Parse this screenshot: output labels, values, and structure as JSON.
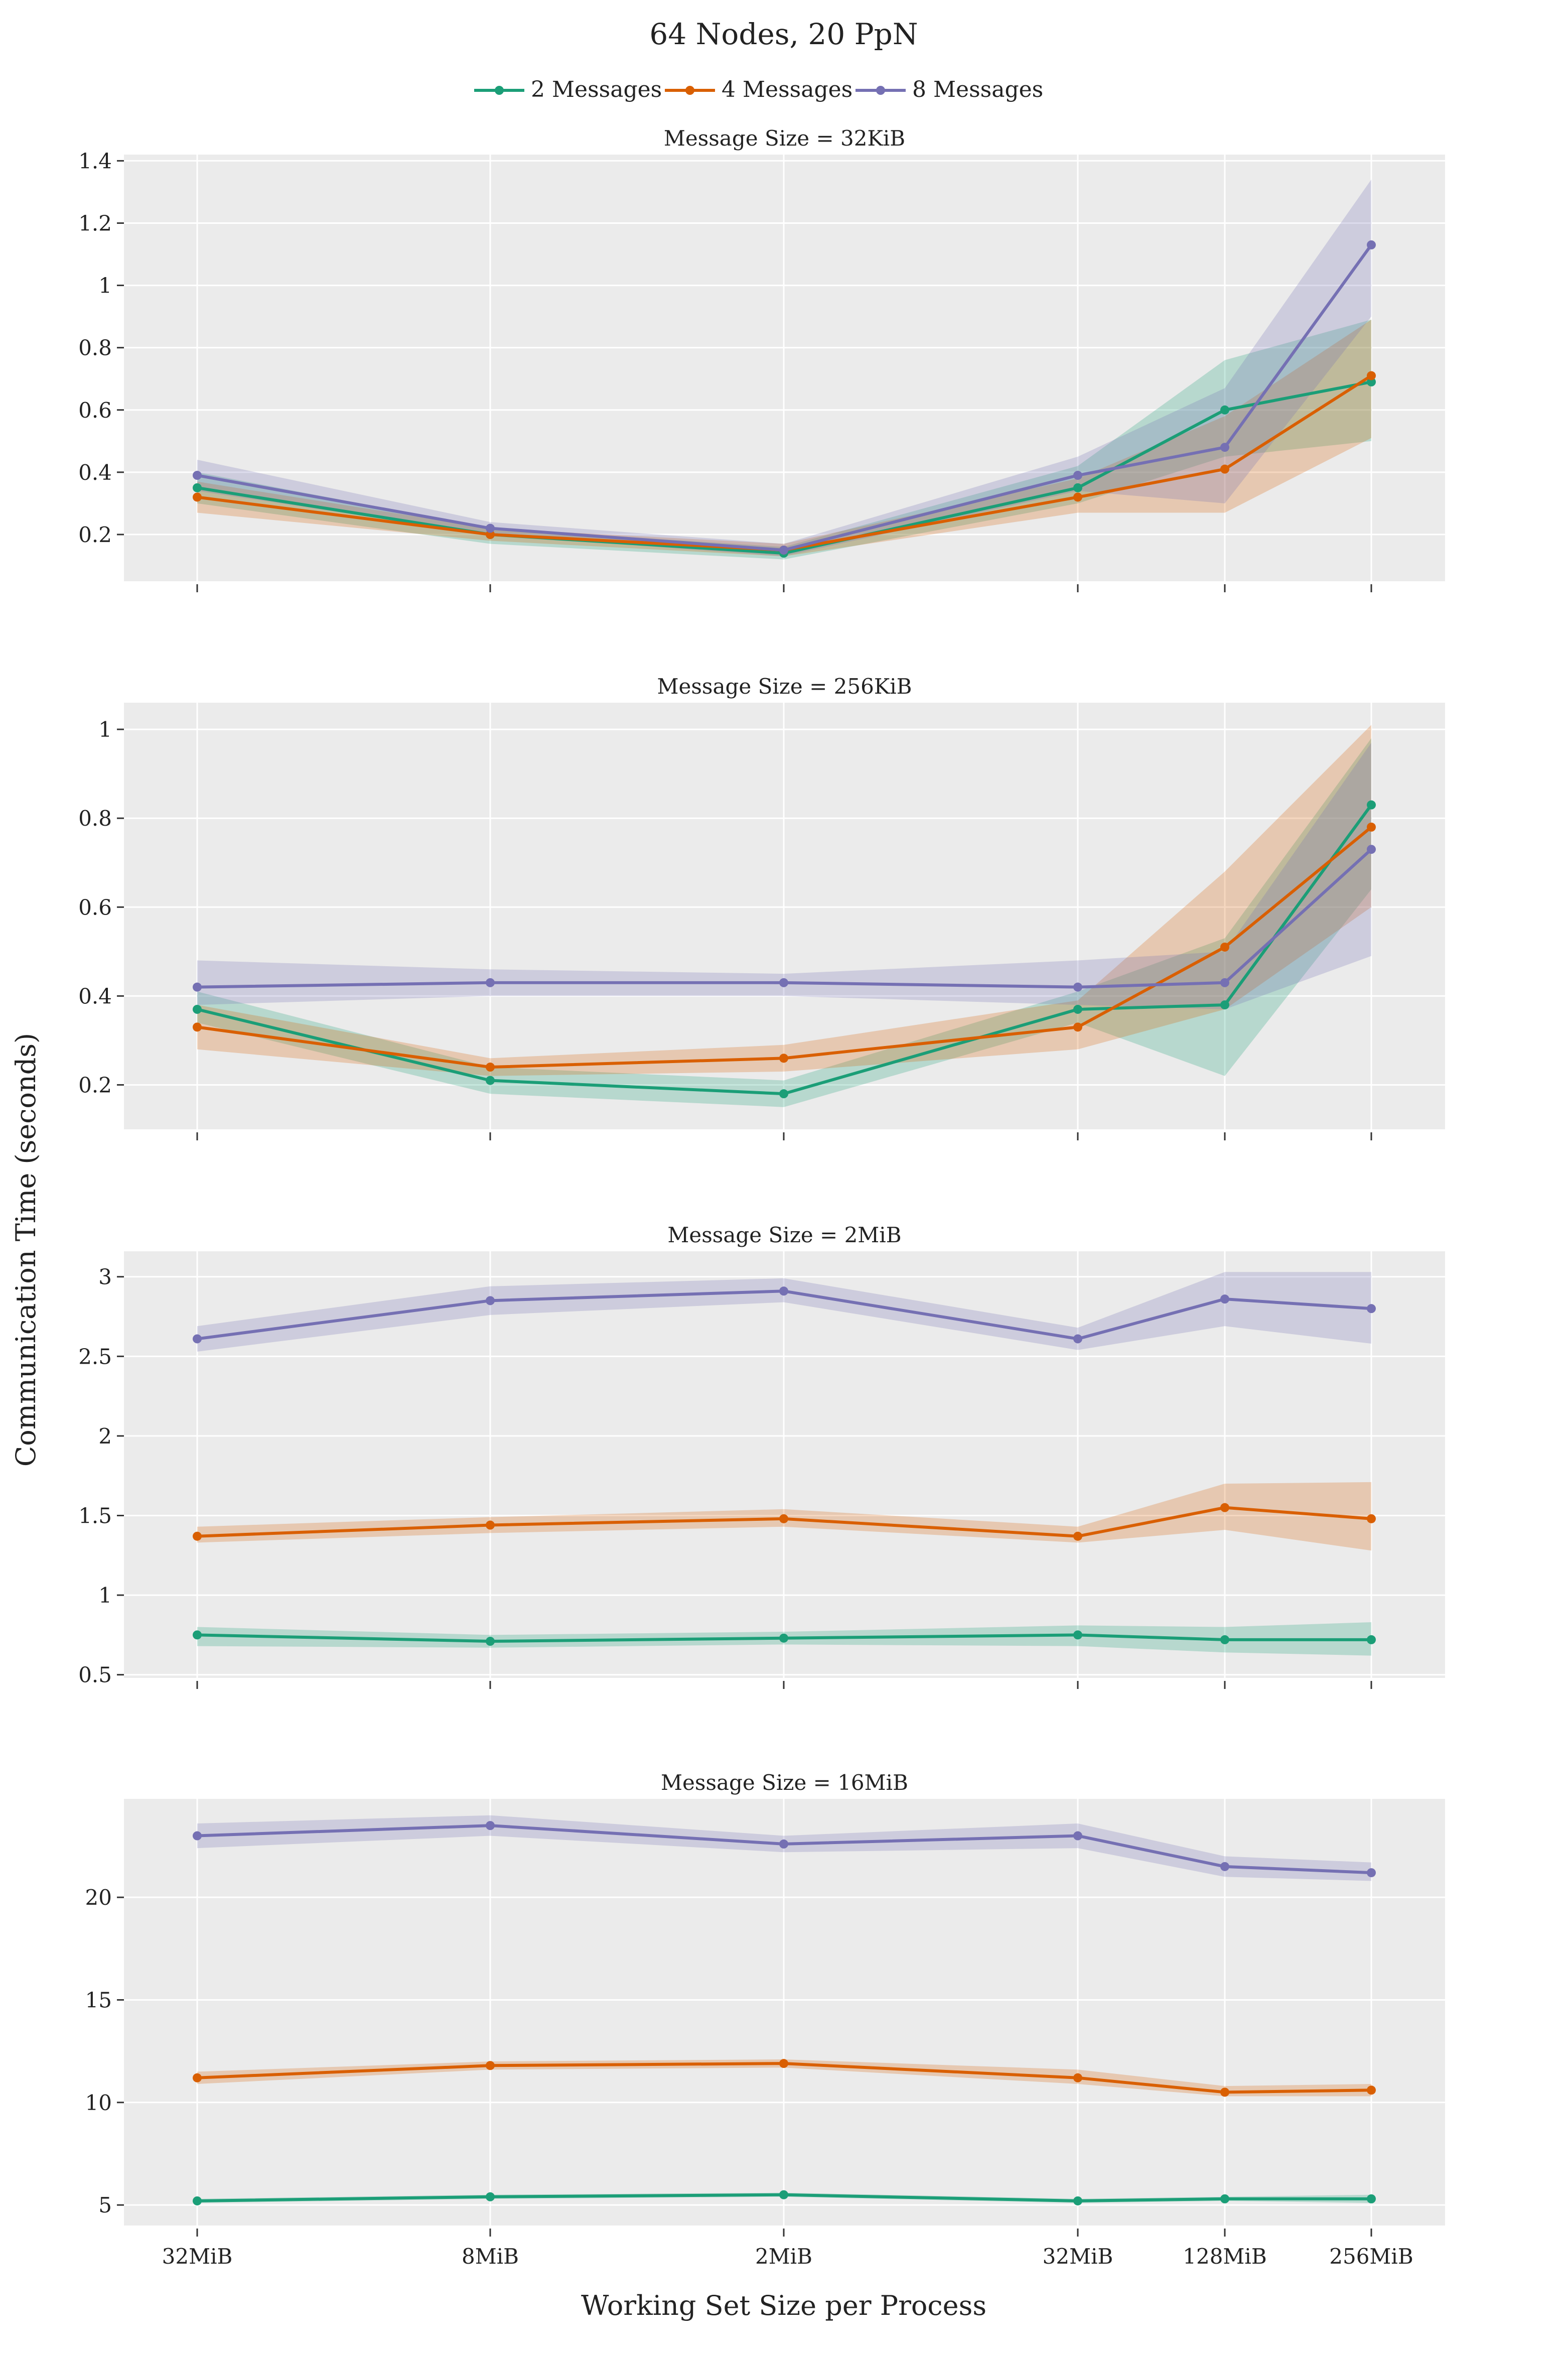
{
  "title": "64 Nodes, 20 PpN",
  "xlabel": "Working Set Size per Process",
  "ylabel": "Communication Time (seconds)",
  "legend": [
    {
      "name": "2 Messages",
      "color": "#1b9e77"
    },
    {
      "name": "4 Messages",
      "color": "#d95f02"
    },
    {
      "name": "8 Messages",
      "color": "#7570b3"
    }
  ],
  "chart_data": [
    {
      "type": "line",
      "title": "Message Size = 32KiB",
      "x": [
        "32MiB",
        "8MiB",
        "2MiB",
        "32MiB",
        "128MiB",
        "256MiB"
      ],
      "ylim": [
        0.05,
        1.42
      ],
      "yticks": [
        0.2,
        0.4,
        0.6,
        0.8,
        1,
        1.2,
        1.4
      ],
      "ytick_labels": [
        "0.2",
        "0.4",
        "0.6",
        "0.8",
        "1",
        "1.2",
        "1.4"
      ],
      "series": [
        {
          "name": "2 Messages",
          "values": [
            0.35,
            0.2,
            0.14,
            0.35,
            0.6,
            0.69
          ],
          "lower": [
            0.3,
            0.17,
            0.12,
            0.3,
            0.45,
            0.5
          ],
          "upper": [
            0.4,
            0.22,
            0.16,
            0.42,
            0.76,
            0.89
          ]
        },
        {
          "name": "4 Messages",
          "values": [
            0.32,
            0.2,
            0.15,
            0.32,
            0.41,
            0.71
          ],
          "lower": [
            0.27,
            0.18,
            0.13,
            0.27,
            0.27,
            0.51
          ],
          "upper": [
            0.37,
            0.22,
            0.17,
            0.38,
            0.58,
            0.89
          ]
        },
        {
          "name": "8 Messages",
          "values": [
            0.39,
            0.22,
            0.15,
            0.39,
            0.48,
            1.13
          ],
          "lower": [
            0.34,
            0.2,
            0.13,
            0.34,
            0.3,
            0.9
          ],
          "upper": [
            0.44,
            0.24,
            0.17,
            0.45,
            0.67,
            1.34
          ]
        }
      ]
    },
    {
      "type": "line",
      "title": "Message Size = 256KiB",
      "x": [
        "32MiB",
        "8MiB",
        "2MiB",
        "32MiB",
        "128MiB",
        "256MiB"
      ],
      "ylim": [
        0.1,
        1.06
      ],
      "yticks": [
        0.2,
        0.4,
        0.6,
        0.8,
        1
      ],
      "ytick_labels": [
        "0.2",
        "0.4",
        "0.6",
        "0.8",
        "1"
      ],
      "series": [
        {
          "name": "2 Messages",
          "values": [
            0.37,
            0.21,
            0.18,
            0.37,
            0.38,
            0.83
          ],
          "lower": [
            0.34,
            0.18,
            0.15,
            0.34,
            0.22,
            0.64
          ],
          "upper": [
            0.41,
            0.24,
            0.21,
            0.41,
            0.53,
            0.98
          ]
        },
        {
          "name": "4 Messages",
          "values": [
            0.33,
            0.24,
            0.26,
            0.33,
            0.51,
            0.78
          ],
          "lower": [
            0.28,
            0.22,
            0.23,
            0.28,
            0.37,
            0.6
          ],
          "upper": [
            0.38,
            0.26,
            0.29,
            0.39,
            0.68,
            1.01
          ]
        },
        {
          "name": "8 Messages",
          "values": [
            0.42,
            0.43,
            0.43,
            0.42,
            0.43,
            0.73
          ],
          "lower": [
            0.38,
            0.4,
            0.4,
            0.38,
            0.37,
            0.49
          ],
          "upper": [
            0.48,
            0.46,
            0.45,
            0.48,
            0.5,
            0.97
          ]
        }
      ]
    },
    {
      "type": "line",
      "title": "Message Size = 2MiB",
      "x": [
        "32MiB",
        "8MiB",
        "2MiB",
        "32MiB",
        "128MiB",
        "256MiB"
      ],
      "ylim": [
        0.48,
        3.16
      ],
      "yticks": [
        0.5,
        1,
        1.5,
        2,
        2.5,
        3
      ],
      "ytick_labels": [
        "0.5",
        "1",
        "1.5",
        "2",
        "2.5",
        "3"
      ],
      "series": [
        {
          "name": "2 Messages",
          "values": [
            0.75,
            0.71,
            0.73,
            0.75,
            0.72,
            0.72
          ],
          "lower": [
            0.68,
            0.67,
            0.69,
            0.68,
            0.64,
            0.62
          ],
          "upper": [
            0.8,
            0.75,
            0.77,
            0.81,
            0.8,
            0.83
          ]
        },
        {
          "name": "4 Messages",
          "values": [
            1.37,
            1.44,
            1.48,
            1.37,
            1.55,
            1.48
          ],
          "lower": [
            1.33,
            1.39,
            1.43,
            1.33,
            1.41,
            1.28
          ],
          "upper": [
            1.43,
            1.49,
            1.54,
            1.43,
            1.7,
            1.71
          ]
        },
        {
          "name": "8 Messages",
          "values": [
            2.61,
            2.85,
            2.91,
            2.61,
            2.86,
            2.8
          ],
          "lower": [
            2.53,
            2.76,
            2.84,
            2.54,
            2.69,
            2.58
          ],
          "upper": [
            2.69,
            2.94,
            2.99,
            2.68,
            3.03,
            3.03
          ]
        }
      ]
    },
    {
      "type": "line",
      "title": "Message Size = 16MiB",
      "x": [
        "32MiB",
        "8MiB",
        "2MiB",
        "32MiB",
        "128MiB",
        "256MiB"
      ],
      "ylim": [
        4.0,
        24.8
      ],
      "yticks": [
        5,
        10,
        15,
        20
      ],
      "ytick_labels": [
        "5",
        "10",
        "15",
        "20"
      ],
      "series": [
        {
          "name": "2 Messages",
          "values": [
            5.2,
            5.4,
            5.5,
            5.2,
            5.3,
            5.3
          ],
          "lower": [
            5.1,
            5.3,
            5.4,
            5.1,
            5.2,
            5.1
          ],
          "upper": [
            5.3,
            5.5,
            5.6,
            5.3,
            5.4,
            5.5
          ]
        },
        {
          "name": "4 Messages",
          "values": [
            11.2,
            11.8,
            11.9,
            11.2,
            10.5,
            10.6
          ],
          "lower": [
            10.9,
            11.6,
            11.7,
            10.9,
            10.3,
            10.3
          ],
          "upper": [
            11.5,
            12.0,
            12.1,
            11.6,
            10.8,
            10.9
          ]
        },
        {
          "name": "8 Messages",
          "values": [
            23.0,
            23.5,
            22.6,
            23.0,
            21.5,
            21.2
          ],
          "lower": [
            22.4,
            23.0,
            22.2,
            22.4,
            21.0,
            20.8
          ],
          "upper": [
            23.6,
            24.0,
            23.0,
            23.6,
            22.0,
            21.7
          ]
        }
      ]
    }
  ]
}
